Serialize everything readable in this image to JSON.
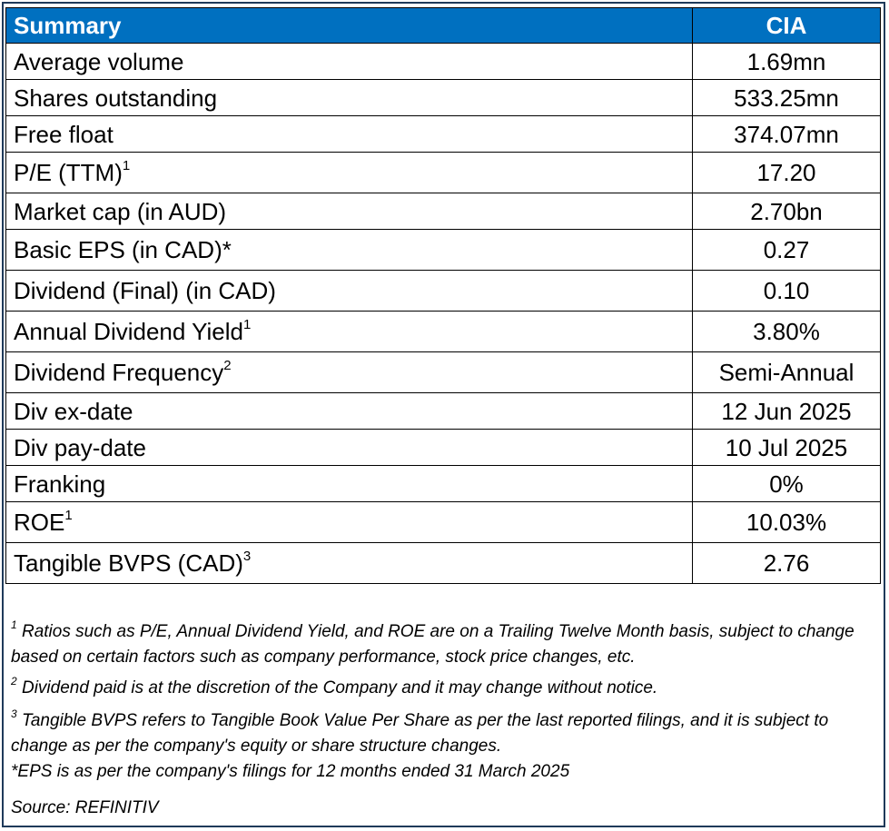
{
  "header": {
    "title": "Summary",
    "ticker": "CIA"
  },
  "rows": [
    {
      "label": "Average volume",
      "sup": "",
      "value": "1.69mn"
    },
    {
      "label": "Shares outstanding",
      "sup": "",
      "value": "533.25mn"
    },
    {
      "label": "Free float",
      "sup": "",
      "value": "374.07mn"
    },
    {
      "label": "P/E (TTM)",
      "sup": "1",
      "value": "17.20"
    },
    {
      "label": "Market cap (in AUD)",
      "sup": "",
      "value": "2.70bn"
    },
    {
      "label": "Basic EPS (in CAD)*",
      "sup": "",
      "value": "0.27"
    },
    {
      "label": "Dividend (Final) (in CAD)",
      "sup": "",
      "value": "0.10"
    },
    {
      "label": "Annual Dividend Yield",
      "sup": "1",
      "value": "3.80%"
    },
    {
      "label": "Dividend Frequency",
      "sup": "2",
      "value": "Semi-Annual"
    },
    {
      "label": "Div ex-date",
      "sup": "",
      "value": "12 Jun 2025"
    },
    {
      "label": "Div pay-date",
      "sup": "",
      "value": "10 Jul 2025"
    },
    {
      "label": "Franking",
      "sup": "",
      "value": "0%"
    },
    {
      "label": "ROE",
      "sup": "1",
      "value": "10.03%"
    },
    {
      "label": "Tangible BVPS (CAD)",
      "sup": "3",
      "value": "2.76"
    }
  ],
  "notes": {
    "note1_mark": "1",
    "note1": "  Ratios such as P/E, Annual Dividend Yield, and ROE are on a Trailing Twelve Month basis, subject to change based on certain factors such as company performance, stock price changes, etc.",
    "note2_mark": "2",
    "note2": " Dividend paid is at the discretion of the Company and it may change without notice.",
    "note3_mark": "3",
    "note3": " Tangible BVPS refers to Tangible Book Value Per Share as per the last reported filings, and it is subject to change as per the company's equity or share structure changes.",
    "eps_note": "*EPS is as per the company's filings for 12 months ended 31 March 2025",
    "source": "Source: REFINITIV"
  },
  "colors": {
    "header_bg": "#0070c0",
    "header_text": "#ffffff",
    "frame": "#1f3a5a"
  }
}
